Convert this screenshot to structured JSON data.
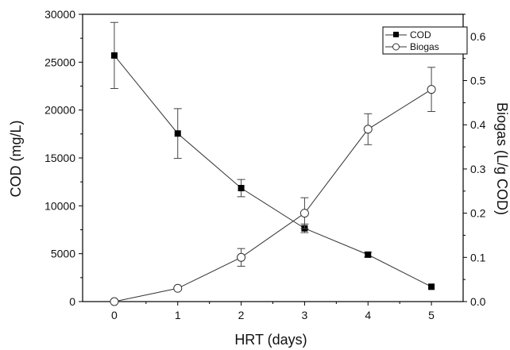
{
  "chart_data": {
    "type": "line",
    "title": "",
    "xlabel": "HRT (days)",
    "ylabel": "COD (mg/L)",
    "y2label": "Biogas (L/g COD)",
    "x": [
      0,
      1,
      2,
      3,
      4,
      5
    ],
    "xlim": [
      -0.5,
      5.5
    ],
    "ylim": [
      0,
      30000
    ],
    "y2lim": [
      0,
      0.65
    ],
    "x_ticks": [
      "0",
      "1",
      "2",
      "3",
      "4",
      "5"
    ],
    "y_ticks": [
      "0",
      "5000",
      "10000",
      "15000",
      "20000",
      "25000",
      "30000"
    ],
    "y2_ticks": [
      "0.0",
      "0.1",
      "0.2",
      "0.3",
      "0.4",
      "0.5",
      "0.6"
    ],
    "grid": false,
    "legend": "top-right",
    "series": [
      {
        "name": "COD",
        "axis": "left",
        "marker": "filled-square",
        "values": [
          25700,
          17550,
          11850,
          7650,
          4900,
          1550
        ],
        "error": [
          3450,
          2600,
          900,
          450,
          250,
          0
        ]
      },
      {
        "name": "Biogas",
        "axis": "right",
        "marker": "open-circle",
        "values": [
          0.0,
          0.03,
          0.1,
          0.2,
          0.39,
          0.48
        ],
        "error": [
          0,
          0,
          0.02,
          0.035,
          0.035,
          0.05
        ]
      }
    ],
    "colors": {
      "line": "#333333",
      "axis": "#000000"
    }
  }
}
